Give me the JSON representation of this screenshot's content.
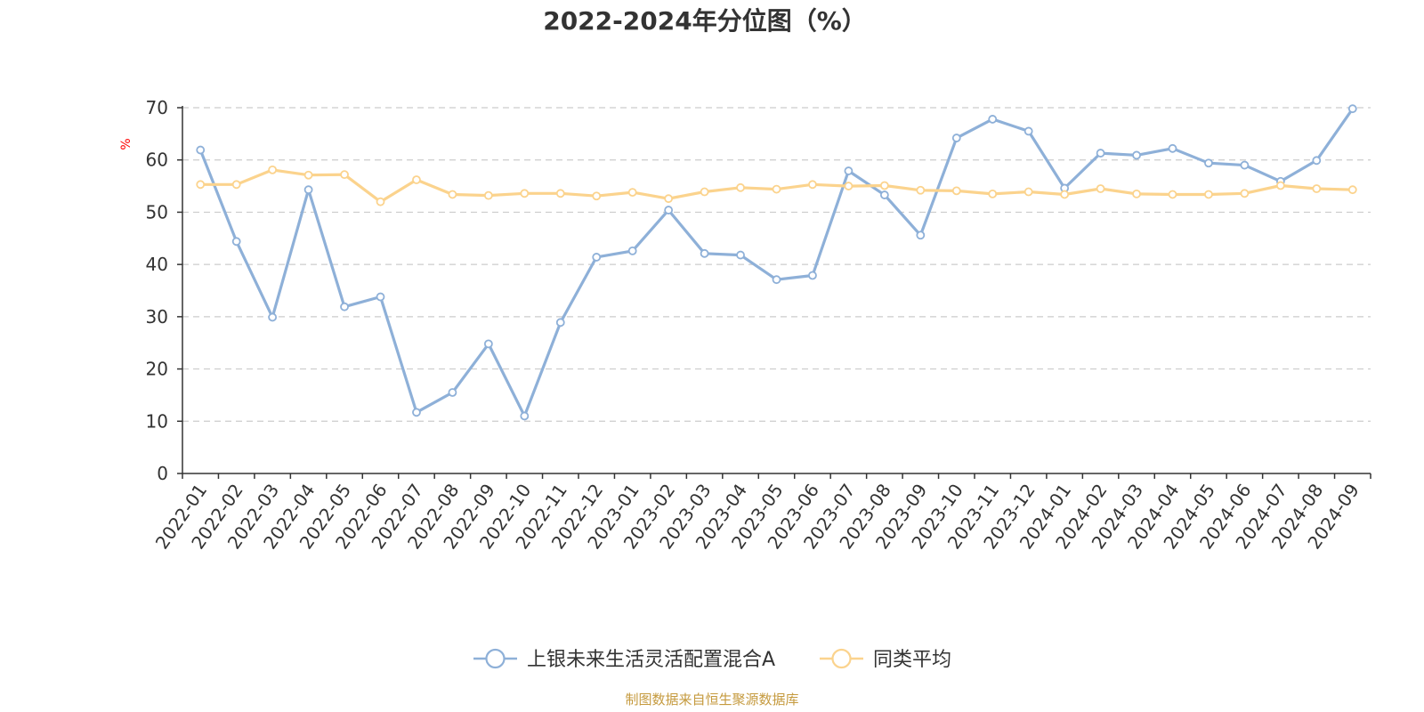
{
  "chart_data": {
    "type": "line",
    "title": "2022-2024年分位图（%）",
    "ylabel": "%",
    "ylim": [
      0,
      70
    ],
    "yticks": [
      "0",
      "10",
      "20",
      "30",
      "40",
      "50",
      "60",
      "70"
    ],
    "grid": true,
    "legend_position": "bottom",
    "categories": [
      "2022-01",
      "2022-02",
      "2022-03",
      "2022-04",
      "2022-05",
      "2022-06",
      "2022-07",
      "2022-08",
      "2022-09",
      "2022-10",
      "2022-11",
      "2022-12",
      "2023-01",
      "2023-02",
      "2023-03",
      "2023-04",
      "2023-05",
      "2023-06",
      "2023-07",
      "2023-08",
      "2023-09",
      "2023-10",
      "2023-11",
      "2023-12",
      "2024-01",
      "2024-02",
      "2024-03",
      "2024-04",
      "2024-05",
      "2024-06",
      "2024-07",
      "2024-08",
      "2024-09"
    ],
    "series": [
      {
        "name": "上银未来生活灵活配置混合A",
        "color": "#8eb0d8",
        "values": [
          61.9,
          44.4,
          29.9,
          54.3,
          31.9,
          33.8,
          11.7,
          15.5,
          24.8,
          11.0,
          28.9,
          41.4,
          42.6,
          50.4,
          42.1,
          41.8,
          37.1,
          37.9,
          57.9,
          53.3,
          45.6,
          64.2,
          67.8,
          65.5,
          54.6,
          61.3,
          60.9,
          62.2,
          59.4,
          59.0,
          55.9,
          59.9,
          69.8
        ]
      },
      {
        "name": "同类平均",
        "color": "#fbd38d",
        "values": [
          55.3,
          55.3,
          58.1,
          57.1,
          57.2,
          52.0,
          56.2,
          53.4,
          53.2,
          53.6,
          53.6,
          53.1,
          53.8,
          52.6,
          53.9,
          54.7,
          54.4,
          55.3,
          55.0,
          55.1,
          54.2,
          54.1,
          53.5,
          53.9,
          53.4,
          54.5,
          53.5,
          53.4,
          53.4,
          53.6,
          55.1,
          54.5,
          54.3
        ]
      }
    ],
    "unit_color": "#ff0000"
  },
  "source": {
    "text": "制图数据来自恒生聚源数据库",
    "color": "#c59a3e"
  }
}
